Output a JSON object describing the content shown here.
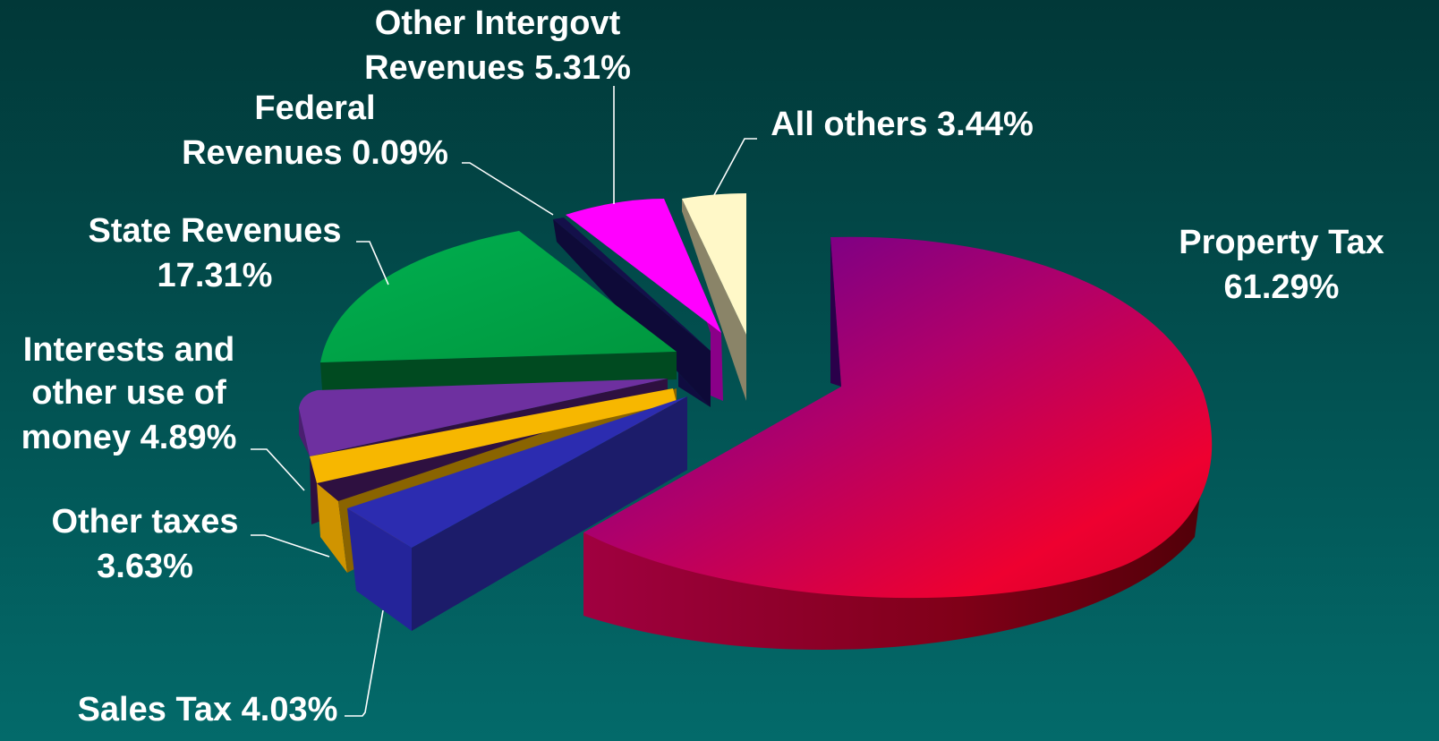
{
  "chart_data": {
    "type": "pie",
    "style": "3d-exploded",
    "slices": [
      {
        "name": "Property Tax",
        "value": 61.29,
        "label_lines": [
          "Property Tax",
          "61.29%"
        ],
        "color": "#c0004a"
      },
      {
        "name": "Sales Tax",
        "value": 4.03,
        "label_lines": [
          "Sales Tax 4.03%"
        ],
        "color": "#2a2aa8"
      },
      {
        "name": "Other taxes",
        "value": 3.63,
        "label_lines": [
          "Other taxes",
          "3.63%"
        ],
        "color": "#f5b800"
      },
      {
        "name": "Interests and other use of money",
        "value": 4.89,
        "label_lines": [
          "Interests and",
          "other use of",
          "money 4.89%"
        ],
        "color": "#6a2e9c"
      },
      {
        "name": "State Revenues",
        "value": 17.31,
        "label_lines": [
          "State Revenues",
          "17.31%"
        ],
        "color": "#00a84a"
      },
      {
        "name": "Federal Revenues",
        "value": 0.09,
        "label_lines": [
          "Federal",
          "Revenues 0.09%"
        ],
        "color": "#14104a"
      },
      {
        "name": "Other Intergovt Revenues",
        "value": 5.31,
        "label_lines": [
          "Other Intergovt",
          "Revenues 5.31%"
        ],
        "color": "#ff00ff"
      },
      {
        "name": "All others",
        "value": 3.44,
        "label_lines": [
          "All others 3.44%"
        ],
        "color": "#fff8c8"
      }
    ]
  }
}
